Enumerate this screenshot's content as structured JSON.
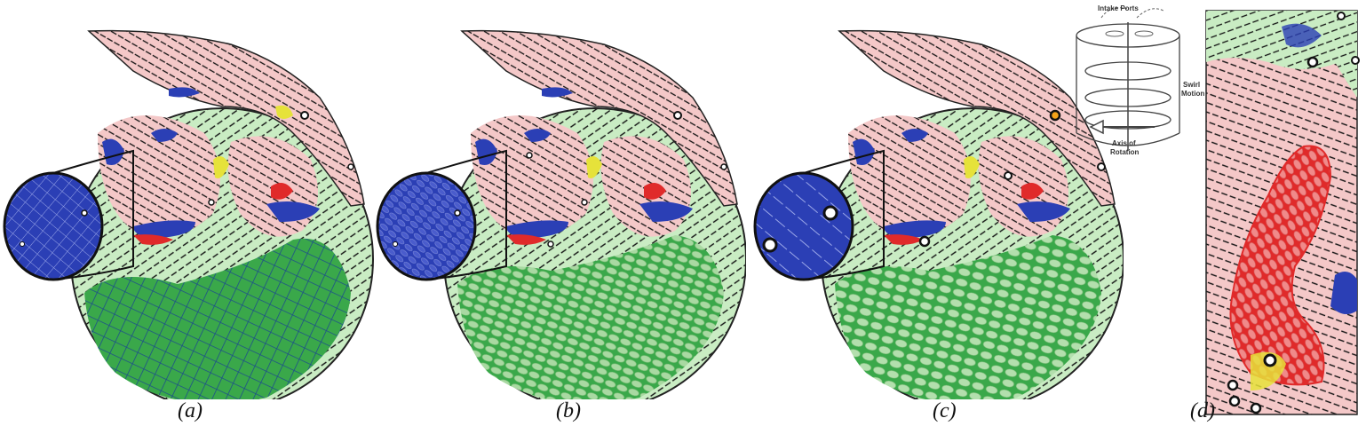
{
  "figure": {
    "panels": [
      {
        "id": "a",
        "caption": "(a)",
        "style": "mesh-lines"
      },
      {
        "id": "b",
        "caption": "(b)",
        "style": "ellipse-glyphs"
      },
      {
        "id": "c",
        "caption": "(c)",
        "style": "ellipse-glyphs-sparse"
      },
      {
        "id": "d",
        "caption": "(d)",
        "style": "cylinder-side"
      }
    ],
    "schematic": {
      "labels": {
        "intake": "Intake Ports",
        "swirl": "Swirl Motion",
        "swirl_l1": "Swirl",
        "swirl_l2": "Motion",
        "axis_l1": "Axis of",
        "axis_l2": "Rotation"
      }
    },
    "colors": {
      "green_region": "#c9ecc3",
      "green_mesh": "#3aa84a",
      "pink_region": "#f4c8c8",
      "blue_region": "#2b3fb5",
      "red_region": "#e02a2a",
      "yellow_region": "#e6e23a",
      "streamline": "#111111"
    }
  }
}
